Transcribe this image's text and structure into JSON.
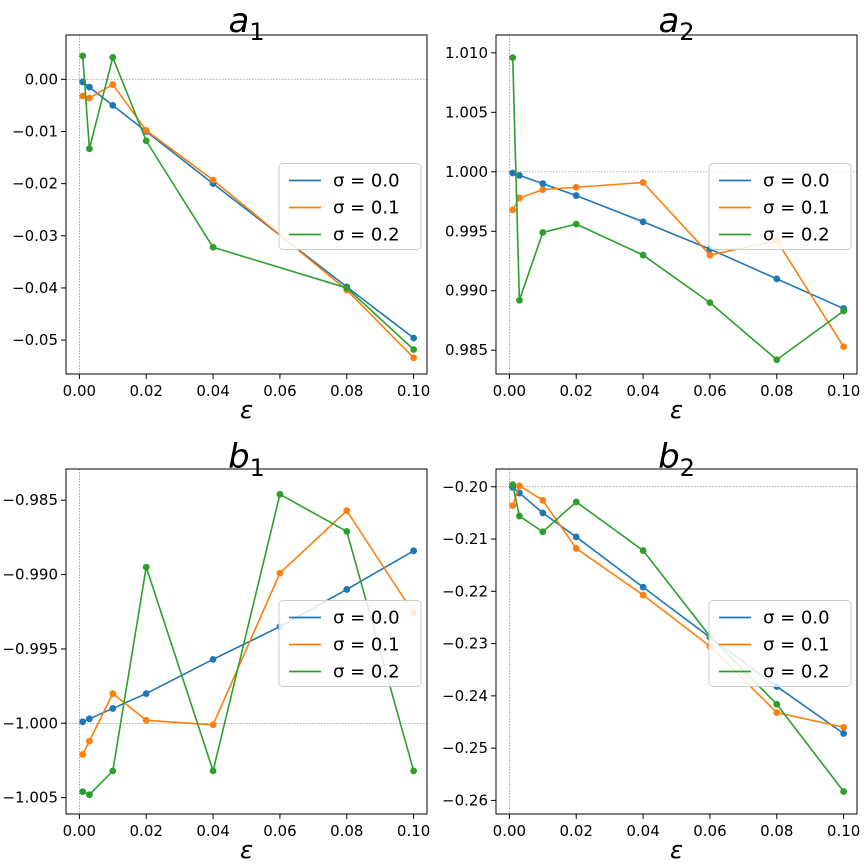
{
  "chart_data": [
    {
      "type": "line",
      "title": "a",
      "title_subscript": "1",
      "xlabel": "ε",
      "ylabel": "",
      "xlim": [
        -0.004,
        0.104
      ],
      "ylim": [
        -0.0565,
        0.0085
      ],
      "xticks": [
        0.0,
        0.02,
        0.04,
        0.06,
        0.08,
        0.1
      ],
      "xtick_labels": [
        "0.00",
        "0.02",
        "0.04",
        "0.06",
        "0.08",
        "0.10"
      ],
      "yticks": [
        0.0,
        -0.01,
        -0.02,
        -0.03,
        -0.04,
        -0.05
      ],
      "ytick_labels": [
        "0.00",
        "−0.01",
        "−0.02",
        "−0.03",
        "−0.04",
        "−0.05"
      ],
      "reference_y": 0.0,
      "reference_x": 0.0,
      "legend_position": "center-right",
      "x": [
        0.001,
        0.003,
        0.01,
        0.02,
        0.04,
        0.08,
        0.1
      ],
      "series": [
        {
          "name": "σ = 0.0",
          "values": [
            -0.0005,
            -0.0015,
            -0.005,
            -0.01,
            -0.02,
            -0.0398,
            -0.0496
          ]
        },
        {
          "name": "σ = 0.1",
          "values": [
            -0.0032,
            -0.0036,
            -0.001,
            -0.0098,
            -0.0193,
            -0.0404,
            -0.0534
          ]
        },
        {
          "name": "σ = 0.2",
          "values": [
            0.0045,
            -0.0133,
            0.0042,
            -0.0118,
            -0.0322,
            -0.04,
            -0.0518
          ]
        }
      ]
    },
    {
      "type": "line",
      "title": "a",
      "title_subscript": "2",
      "xlabel": "ε",
      "ylabel": "",
      "xlim": [
        -0.004,
        0.104
      ],
      "ylim": [
        0.983,
        1.0115
      ],
      "xticks": [
        0.0,
        0.02,
        0.04,
        0.06,
        0.08,
        0.1
      ],
      "xtick_labels": [
        "0.00",
        "0.02",
        "0.04",
        "0.06",
        "0.08",
        "0.10"
      ],
      "yticks": [
        1.01,
        1.005,
        1.0,
        0.995,
        0.99,
        0.985
      ],
      "ytick_labels": [
        "1.010",
        "1.005",
        "1.000",
        "0.995",
        "0.990",
        "0.985"
      ],
      "reference_y": 1.0,
      "reference_x": 0.0,
      "legend_position": "center-right",
      "x": [
        0.001,
        0.003,
        0.01,
        0.02,
        0.04,
        0.06,
        0.08,
        0.1
      ],
      "series": [
        {
          "name": "σ = 0.0",
          "values": [
            0.9999,
            0.9997,
            0.999,
            0.998,
            0.9958,
            0.9935,
            0.991,
            0.9885
          ]
        },
        {
          "name": "σ = 0.1",
          "values": [
            0.9968,
            0.9978,
            0.9985,
            0.9987,
            0.9991,
            0.993,
            0.9942,
            0.9853
          ]
        },
        {
          "name": "σ = 0.2",
          "values": [
            1.0096,
            0.9892,
            0.9949,
            0.9956,
            0.993,
            0.989,
            0.9842,
            0.9883
          ]
        }
      ]
    },
    {
      "type": "line",
      "title": "b",
      "title_subscript": "1",
      "xlabel": "ε",
      "ylabel": "",
      "xlim": [
        -0.004,
        0.104
      ],
      "ylim": [
        -1.0061,
        -0.9829
      ],
      "xticks": [
        0.0,
        0.02,
        0.04,
        0.06,
        0.08,
        0.1
      ],
      "xtick_labels": [
        "0.00",
        "0.02",
        "0.04",
        "0.06",
        "0.08",
        "0.10"
      ],
      "yticks": [
        -0.985,
        -0.99,
        -0.995,
        -1.0,
        -1.005
      ],
      "ytick_labels": [
        "−0.985",
        "−0.990",
        "−0.995",
        "−1.000",
        "−1.005"
      ],
      "reference_y": -1.0,
      "reference_x": 0.0,
      "legend_position": "center-right",
      "x": [
        0.001,
        0.003,
        0.01,
        0.02,
        0.04,
        0.06,
        0.08,
        0.1
      ],
      "series": [
        {
          "name": "σ = 0.0",
          "values": [
            -0.9999,
            -0.9997,
            -0.999,
            -0.998,
            -0.9957,
            -0.9935,
            -0.991,
            -0.9884
          ]
        },
        {
          "name": "σ = 0.1",
          "values": [
            -1.0021,
            -1.0012,
            -0.998,
            -0.9998,
            -1.0001,
            -0.9899,
            -0.9857,
            -0.9926
          ]
        },
        {
          "name": "σ = 0.2",
          "values": [
            -1.0046,
            -1.0048,
            -1.0032,
            -0.9895,
            -1.0032,
            -0.9846,
            -0.9871,
            -1.0032
          ]
        }
      ]
    },
    {
      "type": "line",
      "title": "b",
      "title_subscript": "2",
      "xlabel": "ε",
      "ylabel": "",
      "xlim": [
        -0.004,
        0.104
      ],
      "ylim": [
        -0.2626,
        -0.1966
      ],
      "xticks": [
        0.0,
        0.02,
        0.04,
        0.06,
        0.08,
        0.1
      ],
      "xtick_labels": [
        "0.00",
        "0.02",
        "0.04",
        "0.06",
        "0.08",
        "0.10"
      ],
      "yticks": [
        -0.2,
        -0.21,
        -0.22,
        -0.23,
        -0.24,
        -0.25,
        -0.26
      ],
      "ytick_labels": [
        "−0.20",
        "−0.21",
        "−0.22",
        "−0.23",
        "−0.24",
        "−0.25",
        "−0.26"
      ],
      "reference_y": -0.2,
      "reference_x": 0.0,
      "legend_position": "center-right",
      "x": [
        0.001,
        0.003,
        0.01,
        0.02,
        0.04,
        0.06,
        0.08,
        0.1
      ],
      "series": [
        {
          "name": "σ = 0.0",
          "values": [
            -0.2001,
            -0.2012,
            -0.205,
            -0.2096,
            -0.2192,
            -0.2288,
            -0.2382,
            -0.2472
          ]
        },
        {
          "name": "σ = 0.1",
          "values": [
            -0.2036,
            -0.1998,
            -0.2026,
            -0.2118,
            -0.2207,
            -0.2305,
            -0.2432,
            -0.246
          ]
        },
        {
          "name": "σ = 0.2",
          "values": [
            -0.1996,
            -0.2056,
            -0.2086,
            -0.2029,
            -0.2122,
            -0.2286,
            -0.2416,
            -0.2583
          ]
        }
      ]
    }
  ],
  "colors": {
    "series": [
      "#1f77b4",
      "#ff7f0e",
      "#2ca02c"
    ],
    "axis": "#000000",
    "reference": "#808080",
    "legend_border": "#cccccc"
  }
}
